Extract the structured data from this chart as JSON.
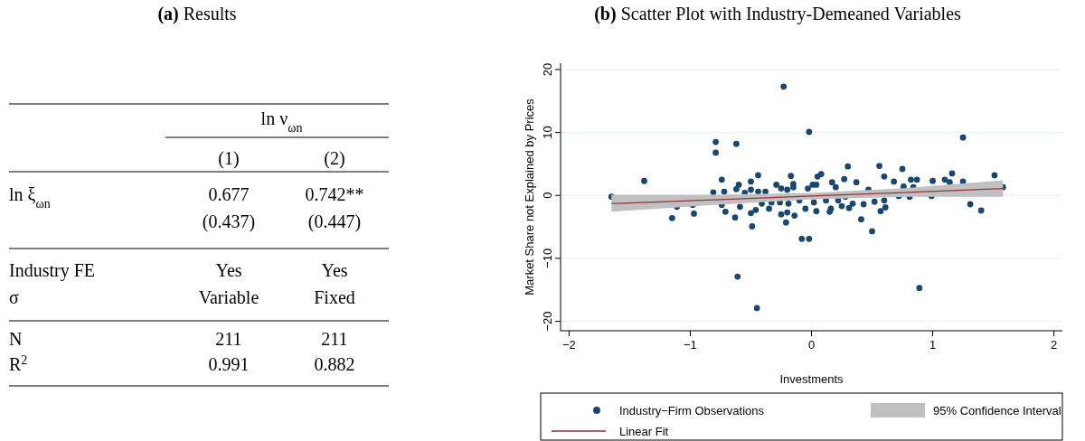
{
  "chart_data": [
    {
      "type": "other",
      "title": "(a) Results",
      "annotations": [
        "ln ν$_{ωn}$"
      ],
      "categories": [
        "(1)",
        "(2)"
      ],
      "y_categories": [
        "ln ξ$_{ωn}$",
        null,
        "Industry FE",
        "σ",
        "N",
        "R$^{2}$"
      ],
      "cell_labels": [
        [
          "0.677",
          "0.742**"
        ],
        [
          "(0.437)",
          "(0.447)"
        ],
        [
          "Yes",
          "Yes"
        ],
        [
          "Variable",
          "Fixed"
        ],
        [
          "211",
          "211"
        ],
        [
          "0.991",
          "0.882"
        ]
      ]
    },
    {
      "type": "scatter",
      "title": "(b) Scatter Plot with Industry-Demeaned Variables",
      "xlabel": "Investments",
      "ylabel": "Market Share not Explained by Prices",
      "xlim": [
        -2.07,
        2.07
      ],
      "ylim": [
        -21.5,
        21
      ],
      "xticks": [
        {
          "value": -2,
          "label": "−2"
        },
        {
          "value": -1,
          "label": "−1"
        },
        0,
        1,
        2
      ],
      "yticks": [
        {
          "value": -20,
          "label": "−20"
        },
        {
          "value": -10,
          "label": "−10"
        },
        0,
        10,
        20
      ],
      "grid": "y",
      "legend": "bottom",
      "annotations": [
        "95% Confidence Interval"
      ],
      "series": [
        {
          "type": "scatter",
          "name": "Industry−Firm Observations",
          "color": "#1a476f",
          "marker": "circle",
          "x": [
            -1.65,
            -1.38,
            -1.15,
            -1.11,
            -0.97,
            -0.98,
            -0.79,
            -0.79,
            -0.62,
            -0.61,
            -0.45,
            -0.23,
            -0.74,
            -0.81,
            -0.72,
            -0.71,
            -0.74,
            -0.63,
            -0.6,
            -0.62,
            -0.59,
            -0.49,
            -0.44,
            -0.5,
            -0.5,
            -0.5,
            -0.46,
            -0.55,
            -0.44,
            -0.38,
            -0.35,
            -0.41,
            -0.29,
            -0.33,
            -0.17,
            -0.21,
            -0.25,
            -0.2,
            -0.14,
            -0.25,
            -0.2,
            -0.15,
            -0.26,
            -0.19,
            -0.02,
            1.25,
            0.89,
            -0.08,
            -0.02,
            0.5,
            0.41,
            0.3,
            0.56,
            0.75,
            1.51,
            1.16,
            1.31,
            1.4,
            1.58,
            1.25,
            1.1,
            1.14,
            1.0,
            0.99,
            0.87,
            0.82,
            0.81,
            0.76,
            0.72,
            0.68,
            0.6,
            0.61,
            0.57,
            0.6,
            0.52,
            0.43,
            0.37,
            0.34,
            0.31,
            0.27,
            0.25,
            0.17,
            0.2,
            0.16,
            0.15,
            0.08,
            0.05,
            0.04,
            0.04,
            0.01,
            -0.05,
            -0.03,
            0.02,
            0.12,
            -0.15,
            -0.1,
            0.22,
            0.28,
            0.47,
            0.84
          ],
          "values": [
            -0.2,
            2.3,
            -3.6,
            -1.8,
            -2.9,
            -1.5,
            8.5,
            6.8,
            8.2,
            -12.9,
            -17.9,
            17.3,
            2.5,
            0.5,
            0.6,
            -2.6,
            -1.5,
            -3.5,
            1.7,
            1.0,
            -1.8,
            -4.9,
            3.2,
            2.2,
            0.9,
            -2.8,
            -2.3,
            0.4,
            0.6,
            0.6,
            -2.1,
            -1.3,
            1.7,
            -1.1,
            3.1,
            -4.3,
            -3.0,
            -2.7,
            -3.2,
            1.1,
            0.9,
            1.8,
            -1.1,
            -1.3,
            10.1,
            9.2,
            -14.7,
            -6.9,
            -6.9,
            -5.7,
            -3.8,
            4.6,
            4.7,
            4.2,
            3.2,
            3.5,
            -1.4,
            -2.4,
            1.3,
            2.2,
            2.5,
            2.1,
            2.3,
            -0.1,
            2.5,
            2.5,
            -0.2,
            1.4,
            -0.1,
            2.2,
            3.0,
            -1.9,
            -2.5,
            -0.8,
            -1.0,
            -1.4,
            2.1,
            -1.3,
            -2.0,
            2.6,
            -1.7,
            2.1,
            1.3,
            -2.1,
            -2.6,
            3.4,
            3.0,
            -2.5,
            1.7,
            1.7,
            -2.1,
            1.1,
            -1.1,
            -0.8,
            1.3,
            -0.8,
            -0.8,
            -0.2,
            0.9,
            1.3
          ]
        },
        {
          "type": "line",
          "name": "Linear Fit",
          "color": "#90353b",
          "marker": "none",
          "x": [
            -1.65,
            -0.8,
            0,
            0.8,
            1.58
          ],
          "values": [
            -1.3,
            -0.7,
            -0.1,
            0.5,
            1.1
          ],
          "lower": [
            -2.6,
            -1.5,
            -0.6,
            -0.2,
            -0.2
          ],
          "upper": [
            0.1,
            0.1,
            0.4,
            1.2,
            2.4
          ]
        }
      ]
    }
  ]
}
